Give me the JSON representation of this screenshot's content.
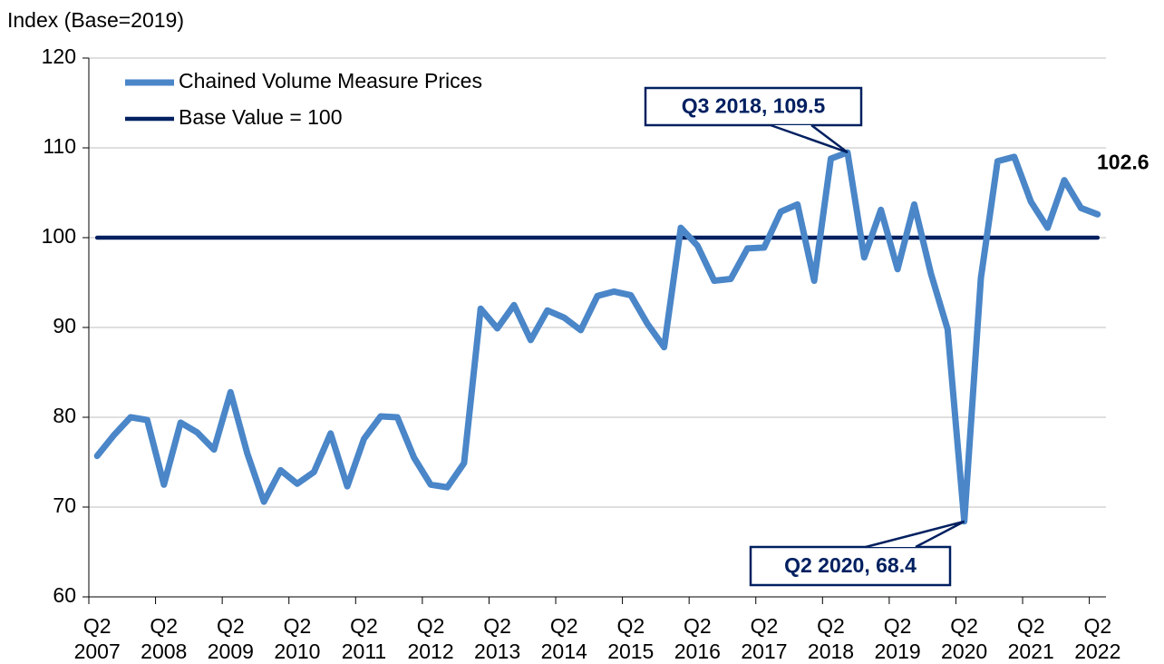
{
  "chart_data": {
    "type": "line",
    "y_axis_title": "Index (Base=2019)",
    "categories": [
      "Q2\n2007",
      null,
      null,
      null,
      "Q2\n2008",
      null,
      null,
      null,
      "Q2\n2009",
      null,
      null,
      null,
      "Q2\n2010",
      null,
      null,
      null,
      "Q2\n2011",
      null,
      null,
      null,
      "Q2\n2012",
      null,
      null,
      null,
      "Q2\n2013",
      null,
      null,
      null,
      "Q2\n2014",
      null,
      null,
      null,
      "Q2\n2015",
      null,
      null,
      null,
      "Q2\n2016",
      null,
      null,
      null,
      "Q2\n2017",
      null,
      null,
      null,
      "Q2\n2018",
      null,
      null,
      null,
      "Q2\n2019",
      null,
      null,
      null,
      "Q2\n2020",
      null,
      null,
      null,
      "Q2\n2021",
      null,
      null,
      null,
      "Q2\n2022"
    ],
    "series": [
      {
        "name": "Chained Volume Measure Prices",
        "color": "#4a86c8",
        "values": [
          75.7,
          78,
          80,
          79.7,
          72.5,
          79.4,
          78.3,
          76.4,
          82.8,
          76,
          70.6,
          74.1,
          72.6,
          73.9,
          78.2,
          72.3,
          77.6,
          80.1,
          80,
          75.5,
          72.5,
          72.2,
          74.9,
          92.1,
          89.9,
          92.5,
          88.6,
          91.9,
          91.1,
          89.7,
          93.5,
          94,
          93.6,
          90.4,
          87.8,
          101.1,
          99.1,
          95.2,
          95.4,
          98.8,
          98.9,
          102.9,
          103.7,
          95.2,
          108.8,
          109.5,
          97.8,
          103.1,
          96.5,
          103.7,
          96,
          89.8,
          68.4,
          95.5,
          108.5,
          109,
          104,
          101.1,
          106.4,
          103.3,
          102.6
        ]
      },
      {
        "name": "Base Value = 100",
        "color": "#002060",
        "values": [
          100,
          100,
          100,
          100,
          100,
          100,
          100,
          100,
          100,
          100,
          100,
          100,
          100,
          100,
          100,
          100,
          100,
          100,
          100,
          100,
          100,
          100,
          100,
          100,
          100,
          100,
          100,
          100,
          100,
          100,
          100,
          100,
          100,
          100,
          100,
          100,
          100,
          100,
          100,
          100,
          100,
          100,
          100,
          100,
          100,
          100,
          100,
          100,
          100,
          100,
          100,
          100,
          100,
          100,
          100,
          100,
          100,
          100,
          100,
          100,
          100
        ]
      }
    ],
    "annotations": [
      {
        "text": "Q3 2018, 109.5",
        "index": 45
      },
      {
        "text": "Q2 2020, 68.4",
        "index": 52
      }
    ],
    "ylim": [
      60,
      120
    ],
    "yticks": [
      60,
      70,
      80,
      90,
      100,
      110,
      120
    ],
    "grid": true,
    "legend": "upper left"
  }
}
